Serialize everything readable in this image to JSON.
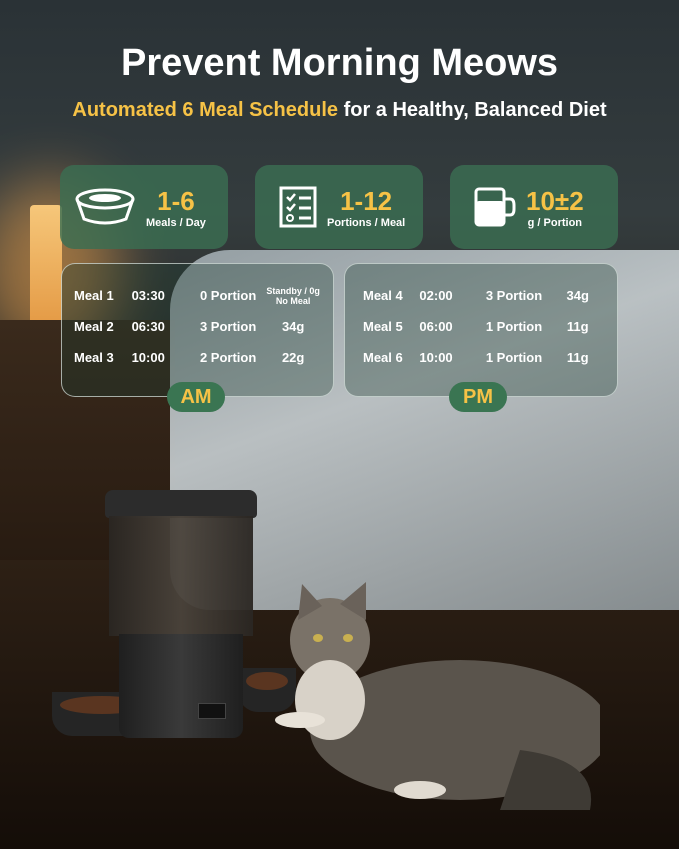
{
  "header": {
    "title": "Prevent Morning Meows",
    "subtitle_highlight": "Automated 6 Meal Schedule",
    "subtitle_rest": " for a Healthy, Balanced Diet"
  },
  "stats": [
    {
      "icon": "bowl-icon",
      "value": "1-6",
      "label": "Meals / Day"
    },
    {
      "icon": "checklist-icon",
      "value": "1-12",
      "label": "Portions / Meal"
    },
    {
      "icon": "cup-icon",
      "value": "10±2",
      "label": "g / Portion"
    }
  ],
  "am": {
    "tag": "AM",
    "rows": [
      {
        "meal": "Meal 1",
        "time": "03:30",
        "portion": "0 Portion",
        "amount": "Standby / 0g No Meal"
      },
      {
        "meal": "Meal 2",
        "time": "06:30",
        "portion": "3 Portion",
        "amount": "34g"
      },
      {
        "meal": "Meal 3",
        "time": "10:00",
        "portion": "2 Portion",
        "amount": "22g"
      }
    ]
  },
  "pm": {
    "tag": "PM",
    "rows": [
      {
        "meal": "Meal 4",
        "time": "02:00",
        "portion": "3 Portion",
        "amount": "34g"
      },
      {
        "meal": "Meal 5",
        "time": "06:00",
        "portion": "1 Portion",
        "amount": "11g"
      },
      {
        "meal": "Meal 6",
        "time": "10:00",
        "portion": "1 Portion",
        "amount": "11g"
      }
    ]
  },
  "colors": {
    "accent": "#f6c246",
    "panel_green": "#3a6e52"
  }
}
